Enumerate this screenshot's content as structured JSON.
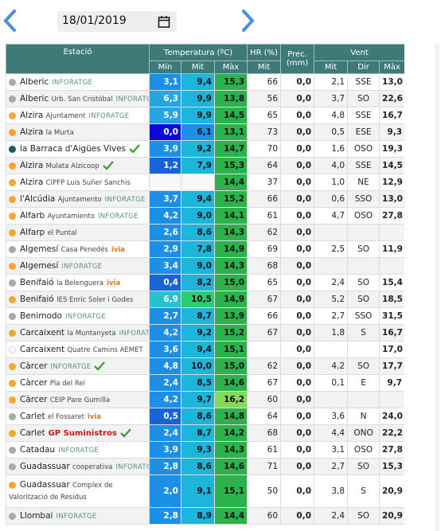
{
  "header": {
    "date": "18/01/2019"
  },
  "table": {
    "columns": [
      "Estació",
      "Temperatura (ºC)",
      "HR (%)",
      "Prec. (mm)",
      "Vent"
    ],
    "subcolumns": [
      "Mín",
      "Mit",
      "Màx",
      "Mit",
      "Mit",
      "Dir",
      "Màx"
    ],
    "rows": [
      {
        "name": "Alberic",
        "tag": "INFORATGE",
        "dot": "#aaaaaa",
        "values": [
          "3,1",
          "9,4",
          "15,3",
          "66",
          "0,0",
          "2,1",
          "SSE",
          "13,0"
        ]
      },
      {
        "name": "Alberic",
        "detail": "Urb. San Cristòbal",
        "tag": "INFORATGE",
        "dot": "#aaaaaa",
        "values": [
          "6,3",
          "9,9",
          "13,8",
          "56",
          "0,0",
          "3,7",
          "SO",
          "22,6"
        ]
      },
      {
        "name": "Alzira",
        "detail": "Ajuntament",
        "tag": "INFORATGE",
        "dot": "#f0a830",
        "values": [
          "5,9",
          "9,9",
          "14,5",
          "65",
          "0,0",
          "4,8",
          "SSE",
          "16,7"
        ]
      },
      {
        "name": "Alzira",
        "detail": "la Murta",
        "dot": "#f0a830",
        "values": [
          "0,0",
          "6,1",
          "13,1",
          "73",
          "0,0",
          "0,5",
          "ESE",
          "9,3"
        ]
      },
      {
        "name": "la Barraca d'Aigües Vives",
        "dot": "#1a5c5c",
        "check": true,
        "values": [
          "3,9",
          "9,2",
          "14,7",
          "70",
          "0,0",
          "1,6",
          "OSO",
          "19,3"
        ]
      },
      {
        "name": "Alzira",
        "detail": "Mulata Alzicoop",
        "dot": "#f0a830",
        "check": true,
        "values": [
          "1,2",
          "7,9",
          "15,3",
          "64",
          "0,0",
          "4,0",
          "SSE",
          "14,5"
        ]
      },
      {
        "name": "Alzira",
        "detail": "CIPFP Luis Suñer Sanchis",
        "dot": "#f0a830",
        "values": [
          null,
          null,
          "14,4",
          "37",
          "0,0",
          "1,0",
          "NE",
          "12,9"
        ]
      },
      {
        "name": "l'Alcúdia",
        "detail": "Ajuntamento",
        "tag": "INFORATGE",
        "dot": "#f0a830",
        "values": [
          "3,7",
          "9,4",
          "15,2",
          "66",
          "0,0",
          "0,6",
          "SSO",
          "13,0"
        ]
      },
      {
        "name": "Alfarb",
        "detail": "Ayuntamiento",
        "tag": "INFORATGE",
        "dot": "#f0a830",
        "values": [
          "4,2",
          "9,0",
          "14,1",
          "61",
          "0,0",
          "4,7",
          "OSO",
          "27,8"
        ]
      },
      {
        "name": "Alfarp",
        "detail": "el Puntal",
        "dot": "#f0a830",
        "values": [
          "2,6",
          "8,6",
          "14,3",
          "62",
          "0,0",
          null,
          null,
          null
        ]
      },
      {
        "name": "Algemesí",
        "detail": "Casa Penedés",
        "tag": "ivia",
        "dot": "#aaaaaa",
        "values": [
          "2,9",
          "7,8",
          "14,9",
          "69",
          "0,0",
          "2,5",
          "SO",
          "11,9"
        ]
      },
      {
        "name": "Algemesí",
        "tag": "INFORATGE",
        "dot": "#f0a830",
        "values": [
          "3,4",
          "9,0",
          "14,3",
          "68",
          "0,0",
          null,
          null,
          null
        ]
      },
      {
        "name": "Benifaió",
        "detail": "la Belenguera",
        "tag": "ivia",
        "dot": "#aaaaaa",
        "values": [
          "0,4",
          "8,2",
          "15,0",
          "65",
          "0,0",
          "2,4",
          "SO",
          "15,4"
        ]
      },
      {
        "name": "Benifaió",
        "detail": "IES Enric Soler i Godes",
        "dot": "#f0a830",
        "values": [
          "6,9",
          "10,5",
          "14,9",
          "67",
          "0,0",
          "5,2",
          "SO",
          "18,5"
        ]
      },
      {
        "name": "Benimodo",
        "tag": "INFORATGE",
        "dot": "#aaaaaa",
        "values": [
          "2,7",
          "8,7",
          "13,9",
          "66",
          "0,0",
          "2,7",
          "SSO",
          "31,5"
        ]
      },
      {
        "name": "Carcaixent",
        "detail": "la Muntanyeta",
        "tag": "INFORATGE",
        "dot": "#f0a830",
        "values": [
          "4,2",
          "9,2",
          "15,2",
          "67",
          "0,0",
          "1,8",
          "S",
          "16,7"
        ]
      },
      {
        "name": "Carcaixent",
        "detail": "Quatre Camins AEMET",
        "dot": "#ffffff",
        "values": [
          "3,6",
          "9,4",
          "15,1",
          null,
          "0,0",
          null,
          null,
          "17,0"
        ]
      },
      {
        "name": "Càrcer",
        "tag": "INFORATGE",
        "dot": "#f0a830",
        "check": true,
        "values": [
          "4,8",
          "10,0",
          "15,0",
          "62",
          "0,0",
          "4,2",
          "SO",
          "17,7"
        ]
      },
      {
        "name": "Càrcer",
        "detail": "Pla del Rei",
        "dot": "#f0a830",
        "values": [
          "2,4",
          "8,5",
          "14,6",
          "67",
          "0,0",
          "0,1",
          "E",
          "9,7"
        ]
      },
      {
        "name": "Càrcer",
        "detail": "CEIP Pare Gumilla",
        "dot": "#f0a830",
        "values": [
          "4,2",
          "9,7",
          "16,2",
          "60",
          "0,0",
          null,
          null,
          null
        ]
      },
      {
        "name": "Carlet",
        "detail": "el Fossaret",
        "tag": "ivia",
        "dot": "#aaaaaa",
        "values": [
          "0,5",
          "8,6",
          "14,8",
          "64",
          "0,0",
          "3,6",
          "N",
          "24,0"
        ]
      },
      {
        "name": "Carlet",
        "tag": "GP Suministros",
        "dot": "#f0a830",
        "check": true,
        "values": [
          "2,4",
          "8,7",
          "14,2",
          "68",
          "0,0",
          "4,4",
          "ONO",
          "22,2"
        ]
      },
      {
        "name": "Catadau",
        "tag": "INFORATGE",
        "dot": "#aaaaaa",
        "values": [
          "3,9",
          "9,3",
          "14,3",
          "61",
          "0,0",
          "3,1",
          "OSO",
          "27,8"
        ]
      },
      {
        "name": "Guadassuar",
        "detail": "cooperativa",
        "tag": "INFORATGE",
        "dot": "#aaaaaa",
        "values": [
          "2,8",
          "8,6",
          "14,6",
          "71",
          "0,0",
          "2,7",
          "SO",
          "15,3"
        ]
      },
      {
        "name": "Guadassuar",
        "detail": "Complex de Valorització de Residus",
        "dot": "#f0a830",
        "values": [
          "2,0",
          "9,1",
          "15,1",
          "50",
          "0,0",
          "3,8",
          "S",
          "20,9"
        ]
      },
      {
        "name": "Llombai",
        "tag": "INFORATGE",
        "dot": "#aaaaaa",
        "values": [
          "2,8",
          "8,9",
          "14,4",
          "60",
          "0,0",
          "2,4",
          "SO",
          "20,9"
        ]
      }
    ]
  }
}
